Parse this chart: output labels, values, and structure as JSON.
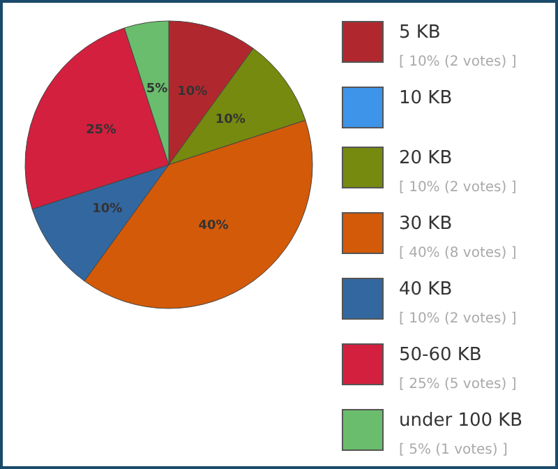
{
  "chart_data": {
    "type": "pie",
    "categories": [
      "5 KB",
      "10 KB",
      "20 KB",
      "30 KB",
      "40 KB",
      "50-60 KB",
      "under 100 KB"
    ],
    "values": [
      10,
      0,
      10,
      40,
      10,
      25,
      5
    ],
    "colors": [
      "#b0282e",
      "#3d94e8",
      "#758a0f",
      "#d35a08",
      "#33679f",
      "#d3203f",
      "#6abd6c"
    ],
    "value_labels": [
      "10%",
      null,
      "10%",
      "40%",
      "10%",
      "25%",
      "5%"
    ],
    "annotations": [
      {
        "text": "[ 10% (2 votes) ]",
        "x": "5 KB"
      },
      {
        "text": "[ 10% (2 votes) ]",
        "x": "20 KB"
      },
      {
        "text": "[ 40% (8 votes) ]",
        "x": "30 KB"
      },
      {
        "text": "[ 10% (2 votes) ]",
        "x": "40 KB"
      },
      {
        "text": "[ 25% (5 votes) ]",
        "x": "50-60 KB"
      },
      {
        "text": "[ 5% (1 votes) ]",
        "x": "under 100 KB"
      }
    ],
    "legend": "right"
  }
}
